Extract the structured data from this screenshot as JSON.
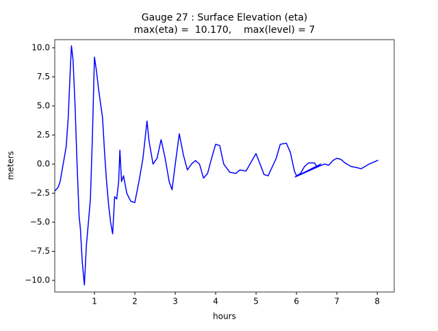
{
  "chart_data": {
    "type": "line",
    "title": "Gauge 27 : Surface Elevation (eta)",
    "subtitle": "max(eta) =  10.170,    max(level) = 7",
    "xlabel": "hours",
    "ylabel": "meters",
    "x": [
      0.02,
      0.1,
      0.15,
      0.2,
      0.25,
      0.3,
      0.35,
      0.4,
      0.43,
      0.47,
      0.52,
      0.57,
      0.62,
      0.65,
      0.7,
      0.75,
      0.8,
      0.85,
      0.9,
      0.95,
      1.0,
      1.05,
      1.1,
      1.15,
      1.2,
      1.25,
      1.3,
      1.35,
      1.4,
      1.45,
      1.5,
      1.55,
      1.6,
      1.63,
      1.67,
      1.72,
      1.8,
      1.9,
      2.0,
      2.1,
      2.2,
      2.3,
      2.35,
      2.45,
      2.55,
      2.65,
      2.75,
      2.85,
      2.92,
      3.0,
      3.1,
      3.2,
      3.3,
      3.4,
      3.5,
      3.6,
      3.7,
      3.8,
      3.9,
      4.0,
      4.1,
      4.2,
      4.35,
      4.5,
      4.6,
      4.75,
      4.9,
      5.0,
      5.1,
      5.2,
      5.3,
      5.5,
      5.6,
      5.75,
      5.85,
      5.95,
      6.0,
      6.1,
      6.2,
      6.3,
      6.45,
      6.5,
      6.6,
      5.97,
      6.62,
      6.7,
      6.8,
      6.9,
      7.0,
      7.1,
      7.2,
      7.35,
      7.5,
      7.6,
      7.8,
      8.0,
      8.02
    ],
    "series": [
      {
        "name": "eta",
        "color": "#0000ff",
        "values": [
          -2.3,
          -2.0,
          -1.5,
          -0.5,
          0.5,
          1.5,
          4,
          8,
          10.17,
          9,
          5,
          0,
          -4.5,
          -5.5,
          -8.5,
          -10.4,
          -7,
          -5,
          -3,
          2.5,
          9.2,
          8,
          6.5,
          5.2,
          4,
          1,
          -1.5,
          -3.5,
          -5,
          -6,
          -2.8,
          -3,
          -1.5,
          1.2,
          -1.5,
          -1,
          -2.5,
          -3.2,
          -3.3,
          -1.5,
          0.5,
          3.7,
          2,
          0,
          0.5,
          2.1,
          0.5,
          -1.5,
          -2.2,
          0,
          2.6,
          0.8,
          -0.5,
          0,
          0.3,
          0,
          -1.2,
          -0.8,
          0.5,
          1.7,
          1.6,
          0,
          -0.7,
          -0.8,
          -0.5,
          -0.6,
          0.3,
          0.9,
          0,
          -0.9,
          -1,
          0.5,
          1.7,
          1.8,
          1,
          -0.6,
          -1.0,
          -0.8,
          -0.2,
          0.1,
          0.1,
          -0.2,
          0,
          -1.1,
          -0.1,
          0,
          -0.1,
          0.3,
          0.5,
          0.4,
          0.1,
          -0.2,
          -0.3,
          -0.4,
          0,
          0.3,
          0.35
        ]
      }
    ],
    "xlim": [
      0.017,
      8.42
    ],
    "ylim": [
      -11.0,
      10.7
    ],
    "xticks": [
      1,
      2,
      3,
      4,
      5,
      6,
      7,
      8
    ],
    "yticks": [
      {
        "value": -10,
        "label": "−10.0"
      },
      {
        "value": -7.5,
        "label": "−7.5"
      },
      {
        "value": -5,
        "label": "−5.0"
      },
      {
        "value": -2.5,
        "label": "−2.5"
      },
      {
        "value": 0,
        "label": "0.0"
      },
      {
        "value": 2.5,
        "label": "2.5"
      },
      {
        "value": 5,
        "label": "5.0"
      },
      {
        "value": 7.5,
        "label": "7.5"
      },
      {
        "value": 10,
        "label": "10.0"
      }
    ]
  }
}
